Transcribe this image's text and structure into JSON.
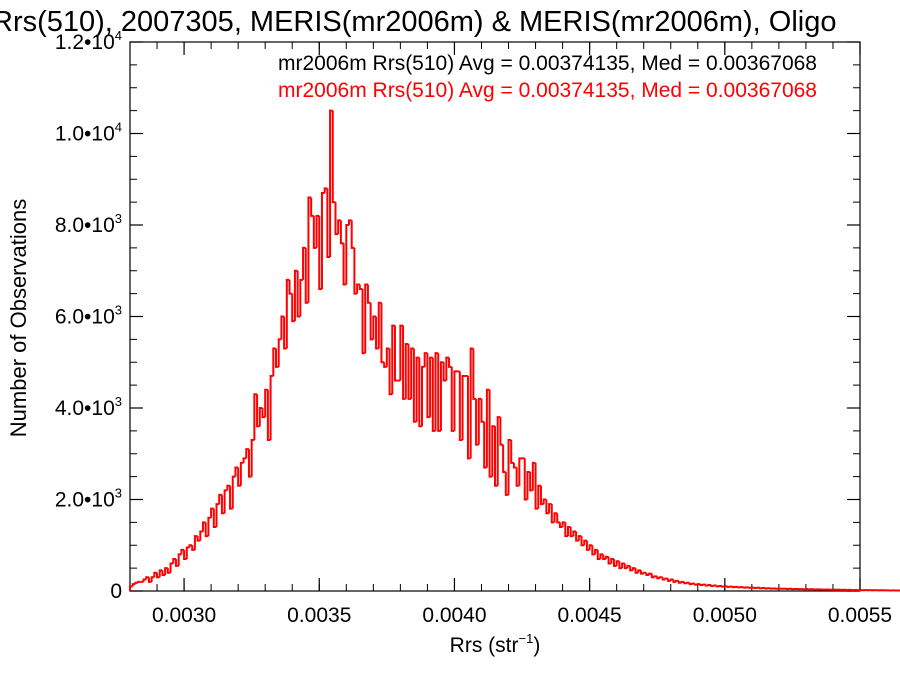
{
  "chart_data": {
    "type": "bar",
    "title": "Rrs(510), 2007305, MERIS(mr2006m) & MERIS(mr2006m), Oligo",
    "xlabel": {
      "base": "Rrs (str",
      "sup": "−1",
      "tail": ")"
    },
    "ylabel": "Number of Observations",
    "xlim": [
      0.0028,
      0.0055
    ],
    "ylim": [
      0,
      12000
    ],
    "xticks": [
      {
        "value": 0.003,
        "label": "0.0030"
      },
      {
        "value": 0.0035,
        "label": "0.0035"
      },
      {
        "value": 0.004,
        "label": "0.0040"
      },
      {
        "value": 0.0045,
        "label": "0.0045"
      },
      {
        "value": 0.005,
        "label": "0.0050"
      },
      {
        "value": 0.0055,
        "label": "0.0055"
      }
    ],
    "yticks": [
      {
        "value": 0,
        "mant": "0",
        "exp": ""
      },
      {
        "value": 2000,
        "mant": "2.0•10",
        "exp": "3"
      },
      {
        "value": 4000,
        "mant": "4.0•10",
        "exp": "3"
      },
      {
        "value": 6000,
        "mant": "6.0•10",
        "exp": "3"
      },
      {
        "value": 8000,
        "mant": "8.0•10",
        "exp": "3"
      },
      {
        "value": 10000,
        "mant": "1.0•10",
        "exp": "4"
      },
      {
        "value": 12000,
        "mant": "1.2•10",
        "exp": "4"
      }
    ],
    "legend": [
      {
        "text": "mr2006m Rrs(510) Avg = 0.00374135, Med = 0.00367068",
        "color": "#000000"
      },
      {
        "text": "mr2006m Rrs(510) Avg = 0.00374135, Med = 0.00367068",
        "color": "#ff0000"
      }
    ],
    "legend_position": "top-right",
    "series": [
      {
        "color": "#ff0000",
        "histogram": true,
        "bin_start": 0.0028,
        "bin_width": 1e-05,
        "values": [
          100,
          150,
          180,
          200,
          200,
          250,
          300,
          200,
          300,
          400,
          300,
          450,
          350,
          500,
          400,
          600,
          700,
          550,
          800,
          900,
          700,
          950,
          1000,
          900,
          1200,
          1100,
          1300,
          1500,
          1200,
          1600,
          1800,
          1400,
          1900,
          2100,
          1700,
          2200,
          2300,
          1800,
          2500,
          2700,
          2300,
          2800,
          2900,
          3100,
          2500,
          3300,
          4300,
          3600,
          4000,
          3800,
          4400,
          3300,
          4700,
          5300,
          4900,
          5500,
          6000,
          5300,
          6800,
          6500,
          5900,
          7000,
          6000,
          6800,
          7500,
          6300,
          8600,
          8200,
          7500,
          8200,
          6600,
          8700,
          8800,
          7300,
          10500,
          8500,
          7800,
          8100,
          7600,
          6700,
          8000,
          8100,
          7500,
          6500,
          6700,
          6600,
          5200,
          6700,
          6300,
          5500,
          6000,
          5300,
          6300,
          5000,
          4900,
          5300,
          4300,
          5800,
          4600,
          4600,
          5800,
          4200,
          5400,
          4200,
          5300,
          3700,
          5100,
          3600,
          4900,
          5200,
          3800,
          5100,
          3500,
          5200,
          3500,
          5000,
          4600,
          5100,
          4900,
          3500,
          4800,
          4800,
          3300,
          4700,
          4700,
          2900,
          5300,
          4200,
          3200,
          4200,
          3700,
          2700,
          4400,
          2500,
          3600,
          2300,
          3800,
          3200,
          2600,
          2100,
          3300,
          2800,
          2700,
          2300,
          2900,
          2900,
          2000,
          2600,
          2200,
          2800,
          1800,
          2300,
          1900,
          2000,
          1700,
          1900,
          1500,
          1700,
          1500,
          1400,
          1500,
          1200,
          1400,
          1200,
          1300,
          1100,
          1200,
          1000,
          1100,
          900,
          1000,
          800,
          900,
          700,
          800,
          700,
          750,
          600,
          700,
          550,
          650,
          500,
          600,
          500,
          550,
          450,
          500,
          400,
          450,
          380,
          400,
          350,
          380,
          300,
          320,
          280,
          300,
          250,
          270,
          220,
          250,
          200,
          220,
          180,
          200,
          170,
          180,
          150,
          160,
          140,
          150,
          130,
          140,
          120,
          130,
          110,
          120,
          100,
          110,
          95,
          100,
          90,
          95,
          85,
          90,
          80,
          85,
          75,
          80,
          70,
          75,
          65,
          70,
          60,
          65,
          55,
          60,
          52,
          55,
          50,
          52,
          48,
          50,
          45,
          48,
          42,
          45,
          40,
          42,
          38,
          40,
          36,
          38,
          34,
          36,
          32,
          34,
          30,
          32,
          28,
          30,
          26,
          28,
          24,
          26,
          22,
          24,
          20,
          22,
          18,
          20,
          17,
          18,
          16,
          17,
          15,
          16,
          14,
          15,
          13,
          14,
          12,
          13,
          11,
          12,
          10
        ]
      }
    ],
    "grid": false
  }
}
